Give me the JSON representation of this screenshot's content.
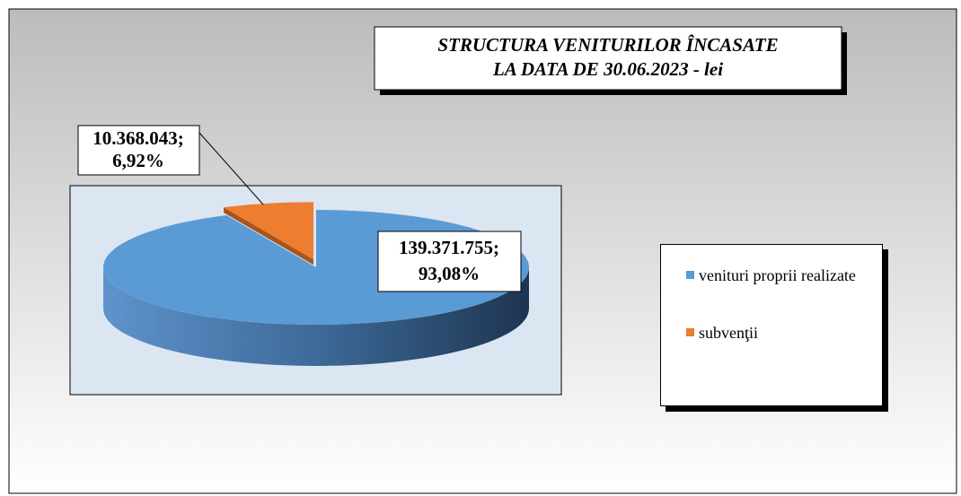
{
  "chart_data": {
    "type": "pie",
    "title": [
      "STRUCTURA VENITURILOR ÎNCASATE",
      "LA DATA DE  30.06.2023 - lei"
    ],
    "series": [
      {
        "name": "venituri proprii realizate",
        "color": "#5b9bd5",
        "value": 139371755,
        "value_label": "139.371.755;",
        "percent": 93.08,
        "percent_label": "93,08%"
      },
      {
        "name": "subvenţii",
        "color": "#ed7d31",
        "value": 10368043,
        "value_label": "10.368.043;",
        "percent": 6.92,
        "percent_label": "6,92%"
      }
    ],
    "legend": "right"
  }
}
